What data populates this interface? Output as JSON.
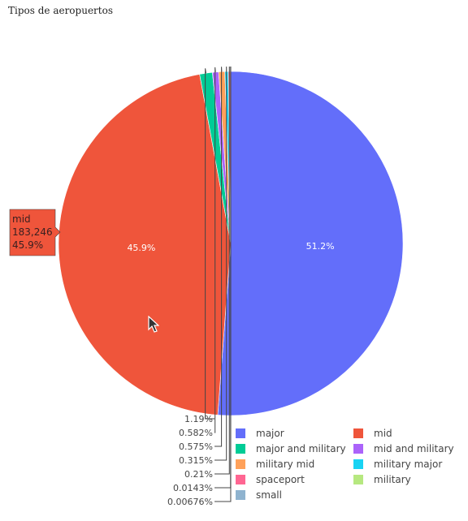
{
  "chart_data": {
    "type": "pie",
    "title": "Tipos de aeropuertos",
    "legend_placement": "bottom-right",
    "slices": [
      {
        "label": "major",
        "percent": 51.2,
        "color": "#636efa"
      },
      {
        "label": "mid",
        "percent": 45.9,
        "value": 183246,
        "color": "#ef553b"
      },
      {
        "label": "major and military",
        "percent": 1.19,
        "color": "#00cc96"
      },
      {
        "label": "mid and military",
        "percent": 0.582,
        "color": "#ab63fa"
      },
      {
        "label": "military mid",
        "percent": 0.575,
        "color": "#ffa15a"
      },
      {
        "label": "military major",
        "percent": 0.315,
        "color": "#19d3f3"
      },
      {
        "label": "spaceport",
        "percent": 0.21,
        "color": "#ff6692"
      },
      {
        "label": "military",
        "percent": 0.0143,
        "color": "#b6e880"
      },
      {
        "label": "small",
        "percent": 0.00676,
        "color": "#8fb3cf"
      }
    ],
    "outside_labels": [
      "1.19%",
      "0.582%",
      "0.575%",
      "0.315%",
      "0.21%",
      "0.0143%",
      "0.00676%"
    ],
    "inside_labels": [
      {
        "slice": "major",
        "text": "51.2%"
      },
      {
        "slice": "mid",
        "text": "45.9%"
      }
    ],
    "legend": [
      {
        "label": "major",
        "color": "#636efa"
      },
      {
        "label": "mid",
        "color": "#ef553b"
      },
      {
        "label": "major and military",
        "color": "#00cc96"
      },
      {
        "label": "mid and military",
        "color": "#ab63fa"
      },
      {
        "label": "military mid",
        "color": "#ffa15a"
      },
      {
        "label": "military major",
        "color": "#19d3f3"
      },
      {
        "label": "spaceport",
        "color": "#ff6692"
      },
      {
        "label": "military",
        "color": "#b6e880"
      },
      {
        "label": "small",
        "color": "#8fb3cf"
      }
    ],
    "tooltip": {
      "label": "mid",
      "value": "183,246",
      "percent": "45.9%"
    }
  }
}
